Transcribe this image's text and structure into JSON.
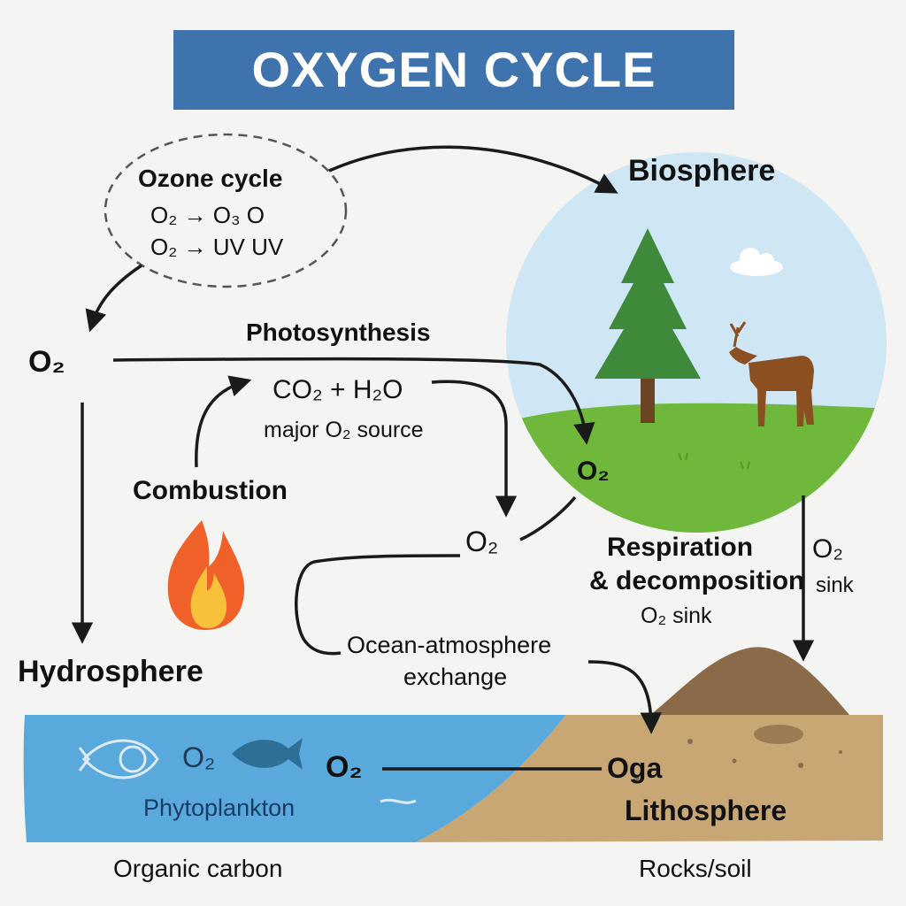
{
  "title": "OXYGEN CYCLE",
  "ozone": {
    "heading": "Ozone cycle",
    "line1": "O₂ → O₃ O",
    "line2": "O₂ → UV UV"
  },
  "biosphere": {
    "label": "Biosphere",
    "o2": "O₂"
  },
  "photosynthesis": {
    "label": "Photosynthesis",
    "formula": "CO₂ + H₂O",
    "note": "major O₂ source"
  },
  "atmosphere_o2": "O₂",
  "center_o2": "O₂",
  "combustion": {
    "label": "Combustion"
  },
  "respiration": {
    "line1": "Respiration",
    "line2": "& decomposition",
    "note": "O₂ sink"
  },
  "sink": {
    "o2": "O₂",
    "label": "sink"
  },
  "exchange": {
    "line1": "Ocean-atmosphere",
    "line2": "exchange"
  },
  "hydrosphere": {
    "label": "Hydrosphere",
    "o2_fish": "O₂",
    "o2_water": "O₂",
    "phytoplankton": "Phytoplankton",
    "caption": "Organic carbon"
  },
  "lithosphere": {
    "o2": "Oga",
    "label": "Lithosphere",
    "caption": "Rocks/soil"
  },
  "colors": {
    "title_bg": "#3f73ae",
    "water": "#5aa9dc",
    "soil": "#c9a774",
    "grass": "#6fb83c",
    "sky": "#cfe6f5",
    "tree": "#3f8a3a",
    "deer": "#8b4f22"
  }
}
